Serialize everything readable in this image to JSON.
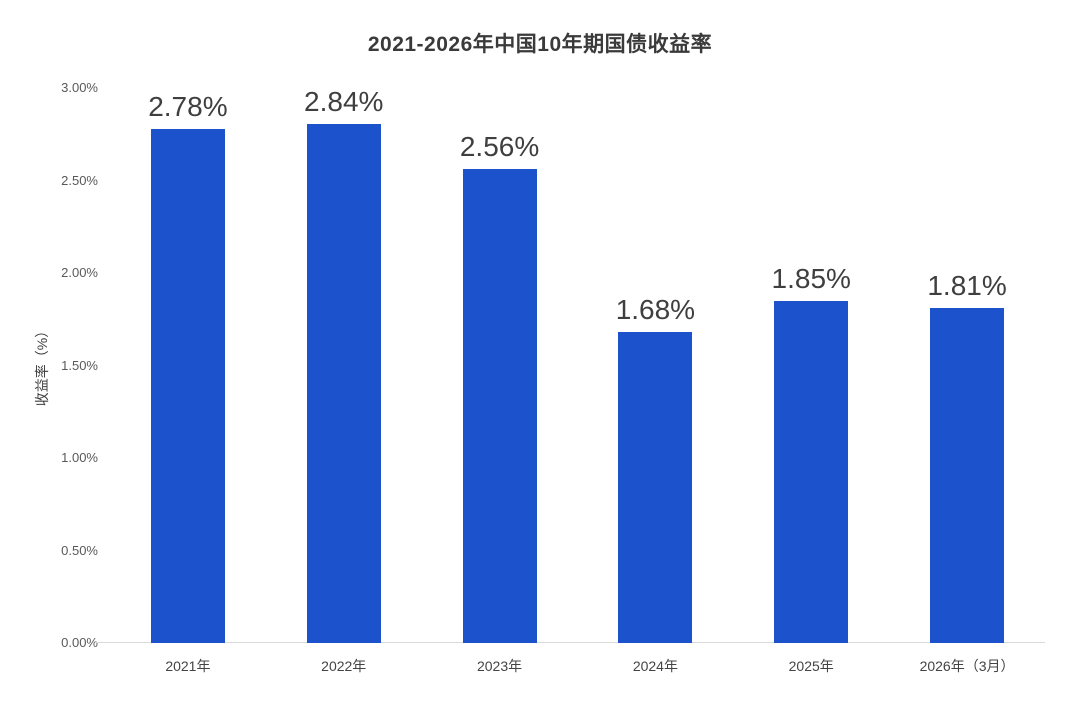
{
  "chart_data": {
    "type": "bar",
    "title": "2021-2026年中国10年期国债收益率",
    "ylabel": "收益率（%）",
    "xlabel": "",
    "categories": [
      "2021年",
      "2022年",
      "2023年",
      "2024年",
      "2025年",
      "2026年（3月）"
    ],
    "values": [
      2.78,
      2.84,
      2.56,
      1.68,
      1.85,
      1.81
    ],
    "value_labels": [
      "2.78%",
      "2.84%",
      "2.56%",
      "1.68%",
      "1.85%",
      "1.81%"
    ],
    "ytick_labels": [
      "0.00%",
      "0.50%",
      "1.00%",
      "1.50%",
      "2.00%",
      "2.50%",
      "3.00%"
    ],
    "ytick_values": [
      0,
      0.5,
      1.0,
      1.5,
      2.0,
      2.5,
      3.0
    ],
    "ylim": [
      0,
      3.0
    ],
    "grid": "off",
    "legend": "none",
    "colors": {
      "bar": "#1C52CB",
      "axis_line": "#d9d9d9",
      "title_text": "#3a3a3a",
      "value_label_text": "#3f3f3f",
      "tick_text": "#595959",
      "background": "#ffffff"
    }
  }
}
